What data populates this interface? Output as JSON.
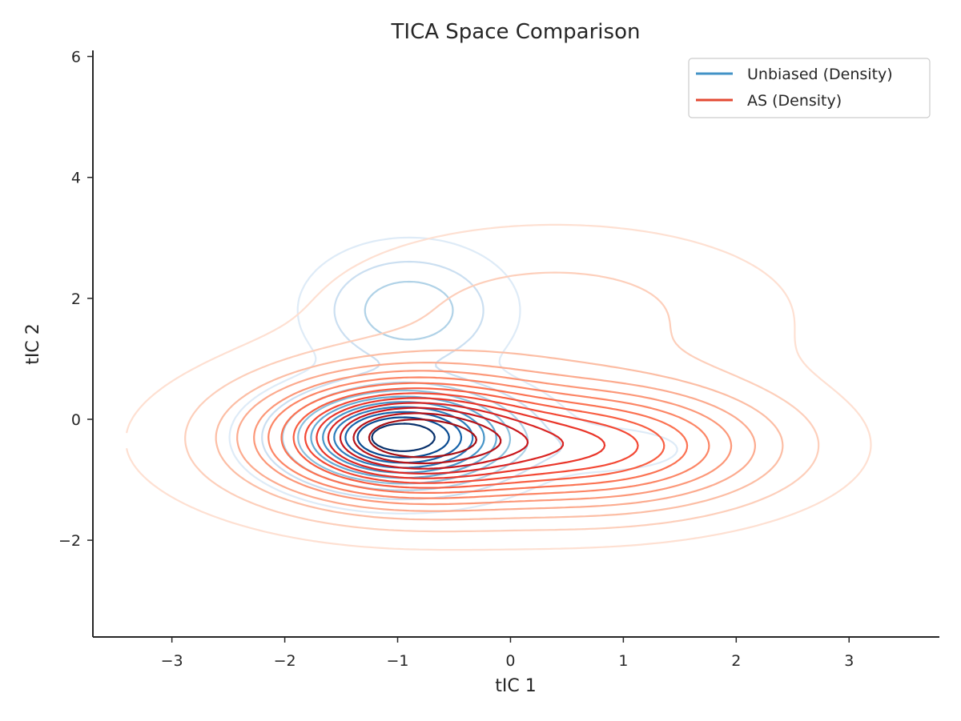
{
  "chart_data": {
    "type": "contour",
    "title": "TICA Space Comparison",
    "xlabel": "tIC 1",
    "ylabel": "tIC 2",
    "xlim": [
      -3.7,
      3.8
    ],
    "ylim": [
      -3.6,
      6.1
    ],
    "xticks": [
      -3,
      -2,
      -1,
      0,
      1,
      2,
      3
    ],
    "yticks": [
      -2,
      0,
      2,
      4,
      6
    ],
    "xtick_labels": [
      "−3",
      "−2",
      "−1",
      "0",
      "1",
      "2",
      "3"
    ],
    "ytick_labels": [
      "−2",
      "0",
      "2",
      "4",
      "6"
    ],
    "grid": false,
    "legend_position": "top-right",
    "series": [
      {
        "name": "Unbiased (Density)",
        "color": "#4292c6",
        "colormap": [
          "#deebf7",
          "#c6dbef",
          "#9ecae1",
          "#6baed6",
          "#4292c6",
          "#2171b5",
          "#08519c",
          "#08306b"
        ],
        "levels": 10,
        "modes": [
          {
            "center": [
              -0.95,
              -0.3
            ],
            "spread": [
              0.55,
              0.45
            ],
            "weight": 1.0
          },
          {
            "center": [
              -0.9,
              1.8
            ],
            "spread": [
              0.45,
              0.55
            ],
            "weight": 0.22
          },
          {
            "center": [
              0.8,
              -0.5
            ],
            "spread": [
              0.5,
              0.25
            ],
            "weight": 0.05
          }
        ]
      },
      {
        "name": "AS (Density)",
        "color": "#e34a33",
        "colormap": [
          "#fee0d2",
          "#fcbba1",
          "#fc9272",
          "#fb6a4a",
          "#ef3b2c",
          "#cb181d",
          "#a50f15"
        ],
        "levels": 14,
        "modes": [
          {
            "center": [
              -0.95,
              -0.3
            ],
            "spread": [
              0.75,
              0.6
            ],
            "weight": 1.0
          },
          {
            "center": [
              0.75,
              -0.45
            ],
            "spread": [
              0.9,
              0.6
            ],
            "weight": 0.55
          },
          {
            "center": [
              0.4,
              1.8
            ],
            "spread": [
              1.3,
              0.9
            ],
            "weight": 0.08
          },
          {
            "center": [
              -0.5,
              -0.4
            ],
            "spread": [
              1.9,
              1.0
            ],
            "weight": 0.06
          }
        ]
      }
    ]
  }
}
